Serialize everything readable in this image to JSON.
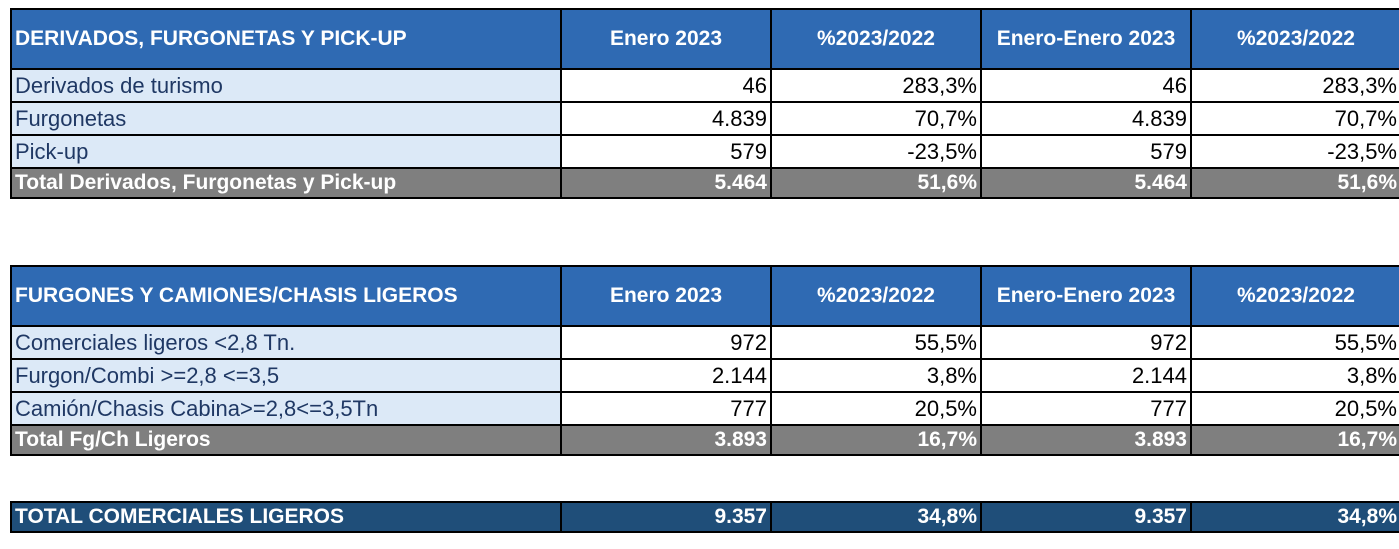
{
  "chart_data": {
    "type": "table",
    "tables": [
      {
        "header": [
          "DERIVADOS, FURGONETAS Y PICK-UP",
          "Enero 2023",
          "%2023/2022",
          "Enero-Enero 2023",
          "%2023/2022"
        ],
        "rows": [
          [
            "Derivados de turismo",
            "46",
            "283,3%",
            "46",
            "283,3%"
          ],
          [
            "Furgonetas",
            "4.839",
            "70,7%",
            "4.839",
            "70,7%"
          ],
          [
            "Pick-up",
            "579",
            "-23,5%",
            "579",
            "-23,5%"
          ]
        ],
        "total": [
          "Total Derivados, Furgonetas y Pick-up",
          "5.464",
          "51,6%",
          "5.464",
          "51,6%"
        ]
      },
      {
        "header": [
          "FURGONES Y CAMIONES/CHASIS LIGEROS",
          "Enero 2023",
          "%2023/2022",
          "Enero-Enero 2023",
          "%2023/2022"
        ],
        "rows": [
          [
            "Comerciales ligeros <2,8 Tn.",
            "972",
            "55,5%",
            "972",
            "55,5%"
          ],
          [
            "Furgon/Combi >=2,8 <=3,5",
            "2.144",
            "3,8%",
            "2.144",
            "3,8%"
          ],
          [
            "Camión/Chasis Cabina>=2,8<=3,5Tn",
            "777",
            "20,5%",
            "777",
            "20,5%"
          ]
        ],
        "total": [
          "Total Fg/Ch Ligeros",
          "3.893",
          "16,7%",
          "3.893",
          "16,7%"
        ]
      }
    ],
    "grand_total": [
      "TOTAL COMERCIALES LIGEROS",
      "9.357",
      "34,8%",
      "9.357",
      "34,8%"
    ]
  },
  "colors": {
    "header_bg": "#2f6ab3",
    "label_bg": "#dce9f7",
    "total_bg": "#7f7f7f",
    "grand_total_bg": "#1f4e79"
  }
}
